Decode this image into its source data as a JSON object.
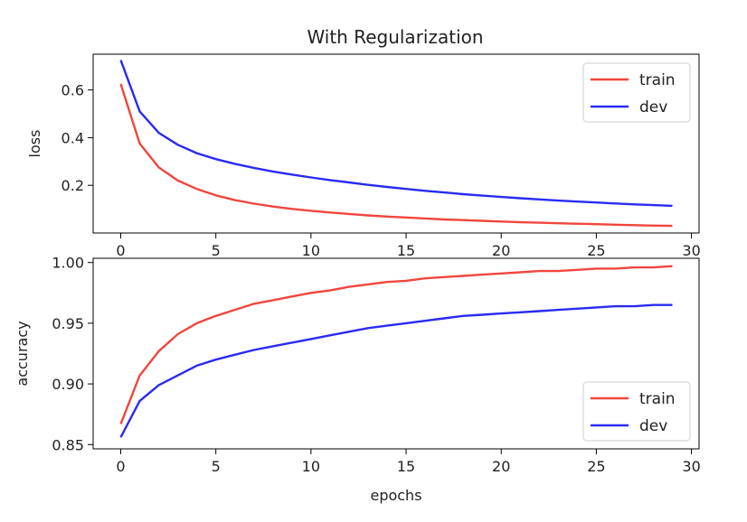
{
  "title": "With Regularization",
  "colors": {
    "train": "#f0463c",
    "dev": "#2a2af5"
  },
  "chart_data": [
    {
      "type": "line",
      "ylabel": "loss",
      "xlabel": "",
      "xlim": [
        -1.45,
        30.4
      ],
      "ylim": [
        0.0,
        0.75
      ],
      "xticks": [
        0,
        5,
        10,
        15,
        20,
        25,
        30
      ],
      "yticks": [
        0.2,
        0.4,
        0.6
      ],
      "ytick_labels": [
        "0.2",
        "0.4",
        "0.6"
      ],
      "legend": "upper right",
      "x": [
        0,
        1,
        2,
        3,
        4,
        5,
        6,
        7,
        8,
        9,
        10,
        11,
        12,
        13,
        14,
        15,
        16,
        17,
        18,
        19,
        20,
        21,
        22,
        23,
        24,
        25,
        26,
        27,
        28,
        29
      ],
      "series": [
        {
          "name": "train",
          "color": "#f0463c",
          "values": [
            0.625,
            0.375,
            0.275,
            0.22,
            0.185,
            0.158,
            0.138,
            0.123,
            0.111,
            0.101,
            0.093,
            0.086,
            0.08,
            0.074,
            0.069,
            0.065,
            0.061,
            0.057,
            0.054,
            0.051,
            0.048,
            0.045,
            0.043,
            0.041,
            0.039,
            0.037,
            0.035,
            0.033,
            0.031,
            0.03
          ]
        },
        {
          "name": "dev",
          "color": "#2a2af5",
          "values": [
            0.725,
            0.51,
            0.42,
            0.37,
            0.335,
            0.31,
            0.29,
            0.273,
            0.258,
            0.245,
            0.233,
            0.222,
            0.212,
            0.202,
            0.193,
            0.185,
            0.177,
            0.17,
            0.163,
            0.157,
            0.151,
            0.146,
            0.141,
            0.136,
            0.132,
            0.128,
            0.124,
            0.12,
            0.117,
            0.114
          ]
        }
      ]
    },
    {
      "type": "line",
      "ylabel": "accuracy",
      "xlabel": "epochs",
      "xlim": [
        -1.45,
        30.4
      ],
      "ylim": [
        0.8465,
        1.0035
      ],
      "xticks": [
        0,
        5,
        10,
        15,
        20,
        25,
        30
      ],
      "yticks": [
        0.85,
        0.9,
        0.95,
        1.0
      ],
      "ytick_labels": [
        "0.85",
        "0.90",
        "0.95",
        "1.00"
      ],
      "legend": "lower right",
      "x": [
        0,
        1,
        2,
        3,
        4,
        5,
        6,
        7,
        8,
        9,
        10,
        11,
        12,
        13,
        14,
        15,
        16,
        17,
        18,
        19,
        20,
        21,
        22,
        23,
        24,
        25,
        26,
        27,
        28,
        29
      ],
      "series": [
        {
          "name": "train",
          "color": "#f0463c",
          "values": [
            0.867,
            0.907,
            0.927,
            0.941,
            0.95,
            0.956,
            0.961,
            0.966,
            0.969,
            0.972,
            0.975,
            0.977,
            0.98,
            0.982,
            0.984,
            0.985,
            0.987,
            0.988,
            0.989,
            0.99,
            0.991,
            0.992,
            0.993,
            0.993,
            0.994,
            0.995,
            0.995,
            0.996,
            0.996,
            0.997
          ]
        },
        {
          "name": "dev",
          "color": "#2a2af5",
          "values": [
            0.856,
            0.886,
            0.899,
            0.907,
            0.915,
            0.92,
            0.924,
            0.928,
            0.931,
            0.934,
            0.937,
            0.94,
            0.943,
            0.946,
            0.948,
            0.95,
            0.952,
            0.954,
            0.956,
            0.957,
            0.958,
            0.959,
            0.96,
            0.961,
            0.962,
            0.963,
            0.964,
            0.964,
            0.965,
            0.965
          ]
        }
      ]
    }
  ]
}
